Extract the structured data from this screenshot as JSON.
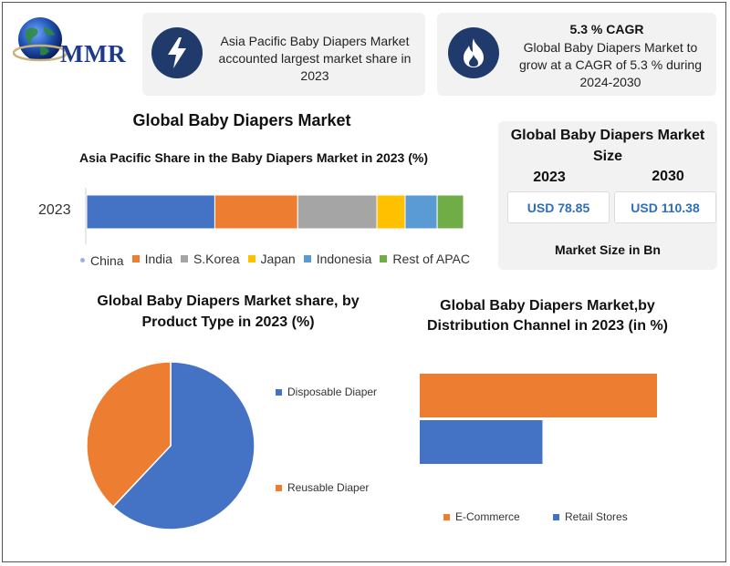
{
  "header": {
    "logo_text": "MMR",
    "info_card_1": {
      "text": "Asia Pacific Baby Diapers Market accounted largest market share in 2023",
      "icon": "lightning-icon"
    },
    "info_card_2": {
      "title": "5.3 % CAGR",
      "text": "Global Baby Diapers Market to grow at a CAGR of 5.3 % during 2024-2030",
      "icon": "flame-icon"
    }
  },
  "main_title": "Global Baby Diapers Market",
  "market_size": {
    "title": "Global Baby Diapers Market Size",
    "year_1": "2023",
    "year_2": "2030",
    "value_1": "USD 78.85",
    "value_2": "USD 110.38",
    "footer": "Market Size in Bn"
  },
  "colors": {
    "china": "#4472c4",
    "india": "#ed7d31",
    "skorea": "#a5a5a5",
    "japan": "#ffc000",
    "indonesia": "#5b9bd5",
    "rest": "#70ad47"
  },
  "chart_data": [
    {
      "type": "bar",
      "orientation": "horizontal-stacked",
      "title": "Asia Pacific Share in the Baby Diapers Market in 2023 (%)",
      "categories": [
        "2023"
      ],
      "series": [
        {
          "name": "China",
          "values": [
            34
          ],
          "color": "#4472c4"
        },
        {
          "name": "India",
          "values": [
            22
          ],
          "color": "#ed7d31"
        },
        {
          "name": "S.Korea",
          "values": [
            21
          ],
          "color": "#a5a5a5"
        },
        {
          "name": "Japan",
          "values": [
            7.5
          ],
          "color": "#ffc000"
        },
        {
          "name": "Indonesia",
          "values": [
            8.5
          ],
          "color": "#5b9bd5"
        },
        {
          "name": "Rest of APAC",
          "values": [
            7
          ],
          "color": "#70ad47"
        }
      ],
      "legend_position": "bottom"
    },
    {
      "type": "pie",
      "title": "Global Baby Diapers Market share, by Product Type in 2023  (%)",
      "categories": [
        "Disposable Diaper",
        "Reusable Diaper"
      ],
      "values": [
        62,
        38
      ],
      "colors": [
        "#4472c4",
        "#ed7d31"
      ],
      "legend_position": "right"
    },
    {
      "type": "bar",
      "orientation": "horizontal",
      "title": "Global Baby Diapers Market,by Distribution Channel in 2023 (in %)",
      "categories": [
        "E-Commerce",
        "Retail Stores"
      ],
      "values": [
        58,
        30
      ],
      "colors": [
        "#ed7d31",
        "#4472c4"
      ],
      "legend_position": "bottom"
    }
  ]
}
